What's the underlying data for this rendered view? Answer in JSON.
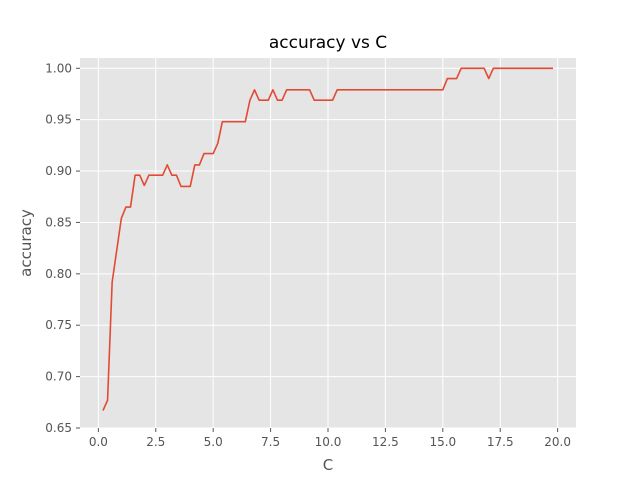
{
  "chart_data": {
    "type": "line",
    "title": "accuracy vs C",
    "xlabel": "C",
    "ylabel": "accuracy",
    "xlim": [
      -0.8,
      20.8
    ],
    "ylim": [
      0.65,
      1.01
    ],
    "xticks": [
      0.0,
      2.5,
      5.0,
      7.5,
      10.0,
      12.5,
      15.0,
      17.5,
      20.0
    ],
    "xtick_labels": [
      "0.0",
      "2.5",
      "5.0",
      "7.5",
      "10.0",
      "12.5",
      "15.0",
      "17.5",
      "20.0"
    ],
    "yticks": [
      0.65,
      0.7,
      0.75,
      0.8,
      0.85,
      0.9,
      0.95,
      1.0
    ],
    "ytick_labels": [
      "0.65",
      "0.70",
      "0.75",
      "0.80",
      "0.85",
      "0.90",
      "0.95",
      "1.00"
    ],
    "grid": true,
    "line_color": "#E24A33",
    "background_color": "#E5E5E5",
    "grid_color": "#FFFFFF",
    "series": [
      {
        "x": [
          0.2,
          0.4,
          0.6,
          0.8,
          1.0,
          1.2,
          1.4,
          1.6,
          1.8,
          2.0,
          2.2,
          2.4,
          2.6,
          2.8,
          3.0,
          3.2,
          3.4,
          3.6,
          3.8,
          4.0,
          4.2,
          4.4,
          4.6,
          4.8,
          5.0,
          5.2,
          5.4,
          5.6,
          5.8,
          6.0,
          6.2,
          6.4,
          6.6,
          6.8,
          7.0,
          7.2,
          7.4,
          7.6,
          7.8,
          8.0,
          8.2,
          8.4,
          8.6,
          8.8,
          9.0,
          9.2,
          9.4,
          9.6,
          9.8,
          10.0,
          10.2,
          10.4,
          10.6,
          14.8,
          15.0,
          15.2,
          15.4,
          15.6,
          15.8,
          16.0,
          16.2,
          16.4,
          16.6,
          16.8,
          17.0,
          17.2,
          17.4,
          19.8
        ],
        "y": [
          0.667,
          0.677,
          0.792,
          0.823,
          0.854,
          0.865,
          0.865,
          0.896,
          0.896,
          0.886,
          0.896,
          0.896,
          0.896,
          0.896,
          0.906,
          0.896,
          0.896,
          0.885,
          0.885,
          0.885,
          0.906,
          0.906,
          0.917,
          0.917,
          0.917,
          0.927,
          0.948,
          0.948,
          0.948,
          0.948,
          0.948,
          0.948,
          0.969,
          0.979,
          0.969,
          0.969,
          0.969,
          0.979,
          0.969,
          0.969,
          0.979,
          0.979,
          0.979,
          0.979,
          0.979,
          0.979,
          0.969,
          0.969,
          0.969,
          0.969,
          0.969,
          0.979,
          0.979,
          0.979,
          0.979,
          0.99,
          0.99,
          0.99,
          1.0,
          1.0,
          1.0,
          1.0,
          1.0,
          1.0,
          0.99,
          1.0,
          1.0,
          1.0
        ]
      }
    ]
  }
}
